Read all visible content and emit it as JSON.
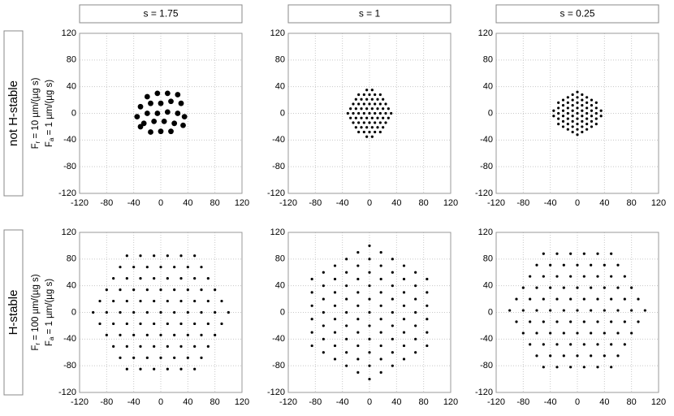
{
  "columns": [
    "s = 1.75",
    "s = 1",
    "s = 0.25"
  ],
  "rows": [
    {
      "label": "not H-stable",
      "fr": {
        "symbol": "F",
        "sub": "r",
        "text": " = 10 µm/(µg s)"
      },
      "fa": {
        "symbol": "F",
        "sub": "a",
        "text": " = 1 µm/(µg s)"
      }
    },
    {
      "label": "H-stable",
      "fr": {
        "symbol": "F",
        "sub": "r",
        "text": " = 100 µm/(µg s)"
      },
      "fa": {
        "symbol": "F",
        "sub": "a",
        "text": " = 1 µm/(µg s)"
      }
    }
  ],
  "chart_data": [
    {
      "type": "scatter",
      "color": "#000000",
      "grid": true,
      "xlim": [
        -120,
        120
      ],
      "ylim": [
        -120,
        120
      ],
      "xticks": [
        -120,
        -80,
        -40,
        0,
        40,
        80,
        120
      ],
      "yticks": [
        -120,
        -80,
        -40,
        0,
        40,
        80,
        120
      ],
      "x": [
        -20,
        -5,
        10,
        25,
        -30,
        -15,
        0,
        15,
        30,
        -35,
        -20,
        -5,
        10,
        25,
        35,
        -25,
        -10,
        5,
        20,
        33,
        -15,
        0,
        15,
        -30
      ],
      "values": [
        25,
        30,
        30,
        28,
        10,
        15,
        15,
        18,
        15,
        -5,
        0,
        0,
        2,
        0,
        -5,
        -15,
        -12,
        -12,
        -15,
        -18,
        -28,
        -27,
        -27,
        -20
      ]
    },
    {
      "type": "scatter",
      "color": "#000000",
      "grid": true,
      "xlim": [
        -120,
        120
      ],
      "ylim": [
        -120,
        120
      ],
      "xticks": [
        -120,
        -80,
        -40,
        0,
        40,
        80,
        120
      ],
      "yticks": [
        -120,
        -80,
        -40,
        0,
        40,
        80,
        120
      ],
      "x": [
        -4,
        4,
        -16,
        -8,
        0,
        8,
        16,
        -20,
        -12,
        -4,
        4,
        12,
        20,
        -24,
        -16,
        -8,
        0,
        8,
        16,
        24,
        -28,
        -20,
        -12,
        -4,
        4,
        12,
        20,
        28,
        -32,
        -24,
        -16,
        -8,
        0,
        8,
        16,
        24,
        32,
        -28,
        -20,
        -12,
        -4,
        4,
        12,
        20,
        28,
        -24,
        -16,
        -8,
        0,
        8,
        16,
        24,
        -20,
        -12,
        -4,
        4,
        12,
        20,
        -16,
        -8,
        0,
        8,
        16,
        -4,
        4
      ],
      "values": [
        35,
        35,
        28,
        28,
        28,
        28,
        28,
        21,
        21,
        21,
        21,
        21,
        21,
        14,
        14,
        14,
        14,
        14,
        14,
        14,
        7,
        7,
        7,
        7,
        7,
        7,
        7,
        7,
        0,
        0,
        0,
        0,
        0,
        0,
        0,
        0,
        0,
        -7,
        -7,
        -7,
        -7,
        -7,
        -7,
        -7,
        -7,
        -14,
        -14,
        -14,
        -14,
        -14,
        -14,
        -14,
        -21,
        -21,
        -21,
        -21,
        -21,
        -21,
        -28,
        -28,
        -28,
        -28,
        -28,
        -35,
        -35
      ]
    },
    {
      "type": "scatter",
      "color": "#000000",
      "grid": true,
      "xlim": [
        -120,
        120
      ],
      "ylim": [
        -120,
        120
      ],
      "xticks": [
        -120,
        -80,
        -40,
        0,
        40,
        80,
        120
      ],
      "yticks": [
        -120,
        -80,
        -40,
        0,
        40,
        80,
        120
      ],
      "x": [
        35,
        35,
        28,
        28,
        28,
        28,
        28,
        21,
        21,
        21,
        21,
        21,
        21,
        14,
        14,
        14,
        14,
        14,
        14,
        14,
        7,
        7,
        7,
        7,
        7,
        7,
        7,
        7,
        0,
        0,
        0,
        0,
        0,
        0,
        0,
        0,
        0,
        -7,
        -7,
        -7,
        -7,
        -7,
        -7,
        -7,
        -7,
        -14,
        -14,
        -14,
        -14,
        -14,
        -14,
        -14,
        -21,
        -21,
        -21,
        -21,
        -21,
        -21,
        -28,
        -28,
        -28,
        -28,
        -28,
        -35,
        -35
      ],
      "values": [
        -4,
        4,
        -16,
        -8,
        0,
        8,
        16,
        -20,
        -12,
        -4,
        4,
        12,
        20,
        -24,
        -16,
        -8,
        0,
        8,
        16,
        24,
        -28,
        -20,
        -12,
        -4,
        4,
        12,
        20,
        28,
        -32,
        -24,
        -16,
        -8,
        0,
        8,
        16,
        24,
        32,
        -28,
        -20,
        -12,
        -4,
        4,
        12,
        20,
        28,
        -24,
        -16,
        -8,
        0,
        8,
        16,
        24,
        -20,
        -12,
        -4,
        4,
        12,
        20,
        -16,
        -8,
        0,
        8,
        16,
        -4,
        4
      ]
    },
    {
      "type": "scatter",
      "color": "#000000",
      "grid": true,
      "xlim": [
        -120,
        120
      ],
      "ylim": [
        -120,
        120
      ],
      "xticks": [
        -120,
        -80,
        -40,
        0,
        40,
        80,
        120
      ],
      "yticks": [
        -120,
        -80,
        -40,
        0,
        40,
        80,
        120
      ],
      "x": [
        -50,
        -30,
        -10,
        10,
        30,
        50,
        -60,
        -40,
        -20,
        0,
        20,
        40,
        60,
        -70,
        -50,
        -30,
        -10,
        10,
        30,
        50,
        70,
        -80,
        -60,
        -40,
        -20,
        0,
        20,
        40,
        60,
        80,
        -90,
        -70,
        -50,
        -30,
        -10,
        10,
        30,
        50,
        70,
        90,
        -100,
        -80,
        -60,
        -40,
        -20,
        0,
        20,
        40,
        60,
        80,
        100,
        -90,
        -70,
        -50,
        -30,
        -10,
        10,
        30,
        50,
        70,
        90,
        -80,
        -60,
        -40,
        -20,
        0,
        20,
        40,
        60,
        80,
        -70,
        -50,
        -30,
        -10,
        10,
        30,
        50,
        70,
        -60,
        -40,
        -20,
        0,
        20,
        40,
        60,
        -50,
        -30,
        -10,
        10,
        30,
        50
      ],
      "values": [
        85,
        85,
        85,
        85,
        85,
        85,
        68,
        68,
        68,
        68,
        68,
        68,
        68,
        51,
        51,
        51,
        51,
        51,
        51,
        51,
        51,
        34,
        34,
        34,
        34,
        34,
        34,
        34,
        34,
        34,
        17,
        17,
        17,
        17,
        17,
        17,
        17,
        17,
        17,
        17,
        0,
        0,
        0,
        0,
        0,
        0,
        0,
        0,
        0,
        0,
        0,
        -17,
        -17,
        -17,
        -17,
        -17,
        -17,
        -17,
        -17,
        -17,
        -17,
        -34,
        -34,
        -34,
        -34,
        -34,
        -34,
        -34,
        -34,
        -34,
        -51,
        -51,
        -51,
        -51,
        -51,
        -51,
        -51,
        -51,
        -68,
        -68,
        -68,
        -68,
        -68,
        -68,
        -68,
        -85,
        -85,
        -85,
        -85,
        -85,
        -85
      ]
    },
    {
      "type": "scatter",
      "color": "#000000",
      "grid": true,
      "xlim": [
        -120,
        120
      ],
      "ylim": [
        -120,
        120
      ],
      "xticks": [
        -120,
        -80,
        -40,
        0,
        40,
        80,
        120
      ],
      "yticks": [
        -120,
        -80,
        -40,
        0,
        40,
        80,
        120
      ],
      "x": [
        85,
        85,
        85,
        85,
        85,
        85,
        68,
        68,
        68,
        68,
        68,
        68,
        68,
        51,
        51,
        51,
        51,
        51,
        51,
        51,
        51,
        34,
        34,
        34,
        34,
        34,
        34,
        34,
        34,
        34,
        17,
        17,
        17,
        17,
        17,
        17,
        17,
        17,
        17,
        17,
        0,
        0,
        0,
        0,
        0,
        0,
        0,
        0,
        0,
        0,
        0,
        -17,
        -17,
        -17,
        -17,
        -17,
        -17,
        -17,
        -17,
        -17,
        -17,
        -34,
        -34,
        -34,
        -34,
        -34,
        -34,
        -34,
        -34,
        -34,
        -51,
        -51,
        -51,
        -51,
        -51,
        -51,
        -51,
        -51,
        -68,
        -68,
        -68,
        -68,
        -68,
        -68,
        -68,
        -85,
        -85,
        -85,
        -85,
        -85,
        -85
      ],
      "values": [
        -50,
        -30,
        -10,
        10,
        30,
        50,
        -60,
        -40,
        -20,
        0,
        20,
        40,
        60,
        -70,
        -50,
        -30,
        -10,
        10,
        30,
        50,
        70,
        -80,
        -60,
        -40,
        -20,
        0,
        20,
        40,
        60,
        80,
        -90,
        -70,
        -50,
        -30,
        -10,
        10,
        30,
        50,
        70,
        90,
        -100,
        -80,
        -60,
        -40,
        -20,
        0,
        20,
        40,
        60,
        80,
        100,
        -90,
        -70,
        -50,
        -30,
        -10,
        10,
        30,
        50,
        70,
        90,
        -80,
        -60,
        -40,
        -20,
        0,
        20,
        40,
        60,
        80,
        -70,
        -50,
        -30,
        -10,
        10,
        30,
        50,
        70,
        -60,
        -40,
        -20,
        0,
        20,
        40,
        60,
        -50,
        -30,
        -10,
        10,
        30,
        50
      ]
    },
    {
      "type": "scatter",
      "color": "#000000",
      "grid": true,
      "xlim": [
        -120,
        120
      ],
      "ylim": [
        -120,
        120
      ],
      "xticks": [
        -120,
        -80,
        -40,
        0,
        40,
        80,
        120
      ],
      "yticks": [
        -120,
        -80,
        -40,
        0,
        40,
        80,
        120
      ],
      "x": [
        -50,
        -30,
        -10,
        10,
        30,
        50,
        -60,
        -40,
        -20,
        0,
        20,
        40,
        60,
        -70,
        -50,
        -30,
        -10,
        10,
        30,
        50,
        70,
        -80,
        -60,
        -40,
        -20,
        0,
        20,
        40,
        60,
        80,
        -90,
        -70,
        -50,
        -30,
        -10,
        10,
        30,
        50,
        70,
        90,
        -100,
        -80,
        -60,
        -40,
        -20,
        0,
        20,
        40,
        60,
        80,
        100,
        -90,
        -70,
        -50,
        -30,
        -10,
        10,
        30,
        50,
        70,
        90,
        -80,
        -60,
        -40,
        -20,
        0,
        20,
        40,
        60,
        80,
        -70,
        -50,
        -30,
        -10,
        10,
        30,
        50,
        70,
        -60,
        -40,
        -20,
        0,
        20,
        40,
        60,
        -50,
        -30,
        -10,
        10,
        30,
        50
      ],
      "values": [
        88,
        88,
        88,
        88,
        88,
        88,
        71,
        71,
        71,
        71,
        71,
        71,
        71,
        54,
        54,
        54,
        54,
        54,
        54,
        54,
        54,
        37,
        37,
        37,
        37,
        37,
        37,
        37,
        37,
        37,
        20,
        20,
        20,
        20,
        20,
        20,
        20,
        20,
        20,
        20,
        3,
        3,
        3,
        3,
        3,
        3,
        3,
        3,
        3,
        3,
        3,
        -14,
        -14,
        -14,
        -14,
        -14,
        -14,
        -14,
        -14,
        -14,
        -14,
        -31,
        -31,
        -31,
        -31,
        -31,
        -31,
        -31,
        -31,
        -31,
        -48,
        -48,
        -48,
        -48,
        -48,
        -48,
        -48,
        -48,
        -65,
        -65,
        -65,
        -65,
        -65,
        -65,
        -65,
        -82,
        -82,
        -82,
        -82,
        -82,
        -82
      ]
    }
  ]
}
